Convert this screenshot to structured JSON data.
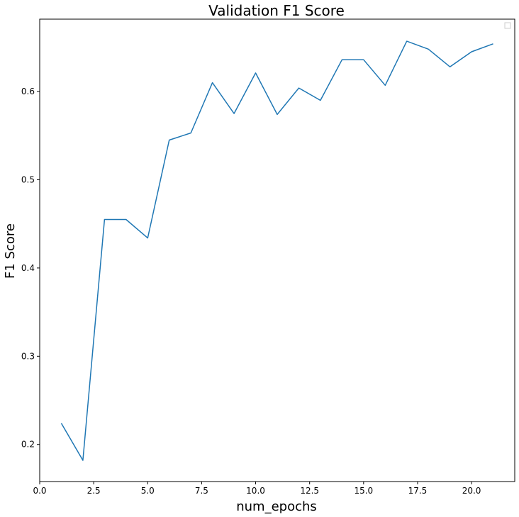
{
  "chart_data": {
    "type": "line",
    "title": "Validation F1 Score",
    "xlabel": "num_epochs",
    "ylabel": "F1 Score",
    "xlim": [
      0,
      22.0
    ],
    "ylim": [
      0.158,
      0.682
    ],
    "xticks": [
      0.0,
      2.5,
      5.0,
      7.5,
      10.0,
      12.5,
      15.0,
      17.5,
      20.0
    ],
    "xtick_labels": [
      "0.0",
      "2.5",
      "5.0",
      "7.5",
      "10.0",
      "12.5",
      "15.0",
      "17.5",
      "20.0"
    ],
    "yticks": [
      0.2,
      0.3,
      0.4,
      0.5,
      0.6
    ],
    "ytick_labels": [
      "0.2",
      "0.3",
      "0.4",
      "0.5",
      "0.6"
    ],
    "grid": false,
    "legend": "top-right (empty)",
    "series": [
      {
        "color": "#1f77b4",
        "x": [
          1,
          2,
          3,
          4,
          5,
          6,
          7,
          8,
          9,
          10,
          11,
          12,
          13,
          14,
          15,
          16,
          17,
          18,
          19,
          20,
          21
        ],
        "y": [
          0.224,
          0.182,
          0.455,
          0.455,
          0.434,
          0.545,
          0.553,
          0.61,
          0.575,
          0.621,
          0.574,
          0.604,
          0.59,
          0.636,
          0.636,
          0.607,
          0.657,
          0.648,
          0.628,
          0.645,
          0.654
        ]
      }
    ]
  }
}
